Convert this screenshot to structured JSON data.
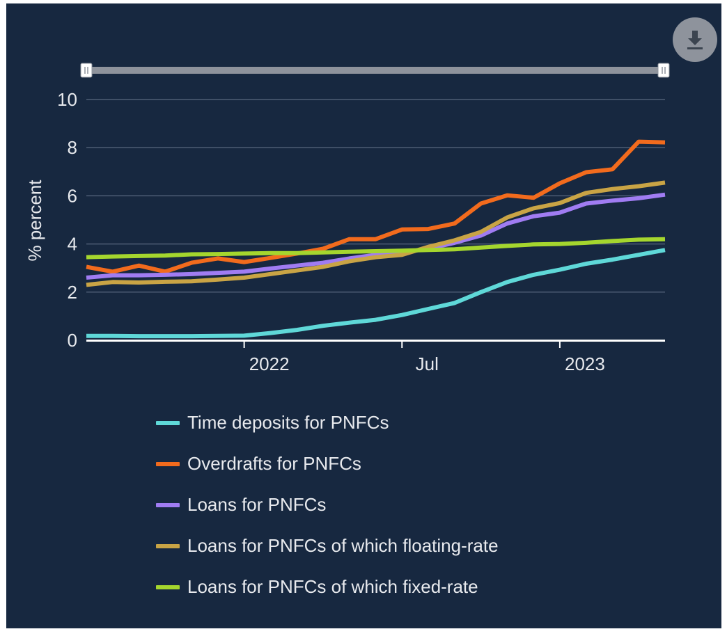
{
  "download_button": {
    "icon": "download-icon"
  },
  "chart_data": {
    "type": "line",
    "ylabel": "% percent",
    "ylim": [
      0,
      10
    ],
    "y_ticks": [
      0,
      2,
      4,
      6,
      8,
      10
    ],
    "grid": true,
    "x_range": [
      "2021-07",
      "2023-05"
    ],
    "x_ticks": [
      {
        "label": "2022",
        "date": "2022-01"
      },
      {
        "label": "Jul",
        "date": "2022-07"
      },
      {
        "label": "2023",
        "date": "2023-01"
      }
    ],
    "x": [
      "2021-07",
      "2021-08",
      "2021-09",
      "2021-10",
      "2021-11",
      "2021-12",
      "2022-01",
      "2022-02",
      "2022-03",
      "2022-04",
      "2022-05",
      "2022-06",
      "2022-07",
      "2022-08",
      "2022-09",
      "2022-10",
      "2022-11",
      "2022-12",
      "2023-01",
      "2023-02",
      "2023-03",
      "2023-04",
      "2023-05"
    ],
    "legend_position": "bottom",
    "range_selector": {
      "start": "2021-07",
      "end": "2023-05"
    },
    "series": [
      {
        "name": "Time deposits for PNFCs",
        "color": "#5fd8d8",
        "values": [
          0.18,
          0.18,
          0.17,
          0.17,
          0.17,
          0.18,
          0.19,
          0.3,
          0.43,
          0.6,
          0.73,
          0.85,
          1.05,
          1.3,
          1.55,
          2.0,
          2.42,
          2.72,
          2.93,
          3.18,
          3.35,
          3.55,
          3.75
        ]
      },
      {
        "name": "Overdrafts for PNFCs",
        "color": "#f26b1d",
        "values": [
          3.05,
          2.85,
          3.1,
          2.85,
          3.22,
          3.4,
          3.25,
          3.42,
          3.6,
          3.8,
          4.2,
          4.2,
          4.6,
          4.62,
          4.85,
          5.68,
          6.02,
          5.92,
          6.52,
          6.98,
          7.1,
          8.25,
          8.22
        ]
      },
      {
        "name": "Loans for PNFCs",
        "color": "#a07cf2",
        "values": [
          2.6,
          2.7,
          2.7,
          2.72,
          2.75,
          2.8,
          2.85,
          2.98,
          3.1,
          3.22,
          3.4,
          3.55,
          3.65,
          3.8,
          4.05,
          4.35,
          4.85,
          5.15,
          5.3,
          5.68,
          5.8,
          5.9,
          6.05
        ]
      },
      {
        "name": "Loans for PNFCs of which floating-rate",
        "color": "#c9a445",
        "values": [
          2.3,
          2.42,
          2.4,
          2.43,
          2.45,
          2.52,
          2.6,
          2.75,
          2.9,
          3.05,
          3.28,
          3.45,
          3.55,
          3.88,
          4.15,
          4.5,
          5.1,
          5.48,
          5.7,
          6.12,
          6.28,
          6.4,
          6.55
        ]
      },
      {
        "name": "Loans for PNFCs of which fixed-rate",
        "color": "#a5d62e",
        "values": [
          3.45,
          3.48,
          3.5,
          3.52,
          3.57,
          3.58,
          3.6,
          3.62,
          3.62,
          3.65,
          3.68,
          3.7,
          3.72,
          3.75,
          3.78,
          3.85,
          3.92,
          3.98,
          4.0,
          4.05,
          4.12,
          4.18,
          4.2
        ]
      }
    ]
  }
}
